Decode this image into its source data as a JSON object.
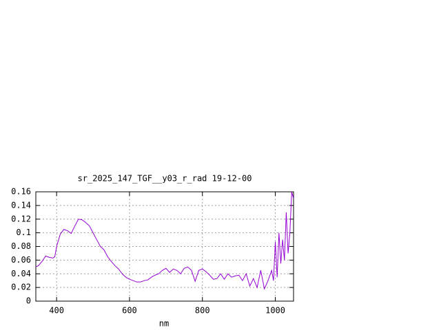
{
  "chart_data": {
    "type": "line",
    "title": "sr_2025_147_TGF__y03_r_rad 19-12-00",
    "x_label": "nm",
    "x": [
      343,
      350,
      360,
      370,
      380,
      390,
      395,
      400,
      410,
      420,
      430,
      440,
      450,
      460,
      470,
      480,
      490,
      500,
      510,
      520,
      530,
      540,
      550,
      560,
      570,
      580,
      590,
      600,
      610,
      620,
      630,
      640,
      650,
      660,
      670,
      680,
      690,
      700,
      710,
      720,
      730,
      740,
      750,
      760,
      770,
      780,
      790,
      800,
      810,
      820,
      830,
      840,
      850,
      860,
      870,
      880,
      890,
      900,
      910,
      920,
      930,
      940,
      950,
      960,
      970,
      980,
      990,
      995,
      1000,
      1005,
      1010,
      1015,
      1020,
      1025,
      1030,
      1035,
      1040,
      1045,
      1050
    ],
    "series": [
      {
        "name": "sr_2025_147_TGF__y03_r_rad",
        "color": "#9400d3",
        "values": [
          0.05,
          0.052,
          0.058,
          0.066,
          0.064,
          0.063,
          0.065,
          0.08,
          0.098,
          0.105,
          0.103,
          0.099,
          0.11,
          0.12,
          0.119,
          0.115,
          0.11,
          0.1,
          0.09,
          0.08,
          0.075,
          0.065,
          0.058,
          0.052,
          0.047,
          0.04,
          0.035,
          0.032,
          0.03,
          0.028,
          0.028,
          0.03,
          0.031,
          0.035,
          0.038,
          0.04,
          0.045,
          0.048,
          0.042,
          0.047,
          0.045,
          0.04,
          0.048,
          0.05,
          0.045,
          0.029,
          0.045,
          0.047,
          0.043,
          0.038,
          0.032,
          0.033,
          0.04,
          0.032,
          0.04,
          0.035,
          0.037,
          0.038,
          0.03,
          0.04,
          0.022,
          0.033,
          0.02,
          0.045,
          0.018,
          0.03,
          0.045,
          0.03,
          0.087,
          0.035,
          0.1,
          0.055,
          0.09,
          0.06,
          0.13,
          0.07,
          0.1,
          0.16,
          0.15
        ]
      }
    ],
    "xlim": [
      343,
      1050
    ],
    "ylim": [
      0,
      0.16
    ],
    "xticks": [
      400,
      600,
      800,
      1000
    ],
    "yticks": [
      0,
      0.02,
      0.04,
      0.06,
      0.08,
      0.1,
      0.12,
      0.14,
      0.16
    ],
    "grid": true
  }
}
